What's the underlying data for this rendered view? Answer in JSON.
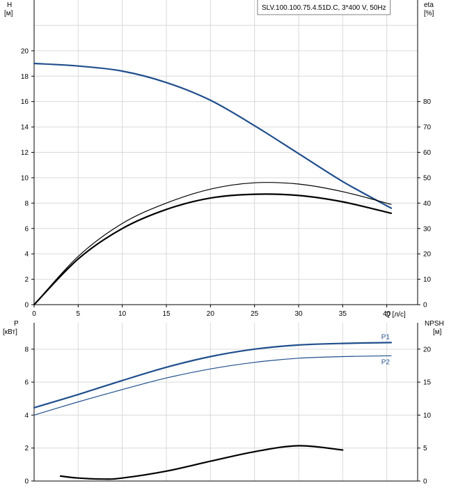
{
  "chart_data": [
    {
      "type": "line",
      "title": "SLV.100.100.75.4.51D.C, 3*400 V, 50Hz",
      "y_left_label": [
        "H",
        "[м]"
      ],
      "y_right_label": [
        "eta",
        "[%]"
      ],
      "xlabel": "Q [л/с]",
      "xlim": [
        0,
        43.5
      ],
      "ylim_left": [
        0,
        24
      ],
      "ylim_right": [
        0,
        120
      ],
      "x_ticks": [
        0,
        5,
        10,
        15,
        20,
        25,
        30,
        35,
        40
      ],
      "y_left_ticks": [
        0,
        2,
        4,
        6,
        8,
        10,
        12,
        14,
        16,
        18,
        20
      ],
      "y_right_ticks": [
        0,
        10,
        20,
        30,
        40,
        50,
        60,
        70,
        80
      ],
      "grid": true,
      "series": [
        {
          "axis": "left",
          "color": "#1f4e8c",
          "x": [
            0,
            5,
            10,
            15,
            20,
            25,
            30,
            35,
            40.5
          ],
          "y": [
            19.0,
            18.8,
            18.4,
            17.5,
            16.1,
            14.1,
            11.9,
            9.7,
            7.6
          ]
        },
        {
          "axis": "right",
          "color": "#000000",
          "x": [
            0,
            5,
            10,
            15,
            20,
            25,
            30,
            35,
            40.5
          ],
          "y": [
            0,
            19,
            32,
            40,
            45.5,
            48,
            47.5,
            44.5,
            39.5
          ]
        },
        {
          "axis": "right",
          "color": "#000000",
          "x": [
            0,
            5,
            10,
            15,
            20,
            25,
            30,
            35,
            40.5
          ],
          "y": [
            0,
            18,
            30,
            37.5,
            42,
            43.5,
            43,
            40.5,
            36
          ]
        }
      ]
    },
    {
      "type": "line",
      "y_left_label": [
        "P",
        "[кВт]"
      ],
      "y_right_label": [
        "NPSH",
        "[м]"
      ],
      "xlim": [
        0,
        43.5
      ],
      "ylim_left": [
        0,
        9.6
      ],
      "ylim_right": [
        0,
        24
      ],
      "x_ticks": [
        0,
        5,
        10,
        15,
        20,
        25,
        30,
        35,
        40
      ],
      "y_left_ticks": [
        0,
        2,
        4,
        6,
        8
      ],
      "y_right_ticks": [
        0,
        5,
        10,
        15,
        20
      ],
      "grid": true,
      "series": [
        {
          "name": "P1",
          "axis": "left",
          "color": "#1f4e8c",
          "x": [
            0,
            5,
            10,
            15,
            20,
            25,
            30,
            35,
            40.5
          ],
          "y": [
            4.45,
            5.25,
            6.1,
            6.9,
            7.55,
            8.0,
            8.25,
            8.35,
            8.4
          ]
        },
        {
          "name": "P2",
          "axis": "left",
          "color": "#1f4e8c",
          "x": [
            0,
            5,
            10,
            15,
            20,
            25,
            30,
            35,
            40.5
          ],
          "y": [
            4.0,
            4.8,
            5.55,
            6.25,
            6.8,
            7.2,
            7.45,
            7.55,
            7.6
          ]
        },
        {
          "axis": "right",
          "color": "#000000",
          "x": [
            3,
            5,
            8,
            10,
            15,
            20,
            25,
            30,
            35
          ],
          "y": [
            0.75,
            0.45,
            0.3,
            0.45,
            1.5,
            3.0,
            4.45,
            5.35,
            4.7
          ]
        }
      ]
    }
  ]
}
